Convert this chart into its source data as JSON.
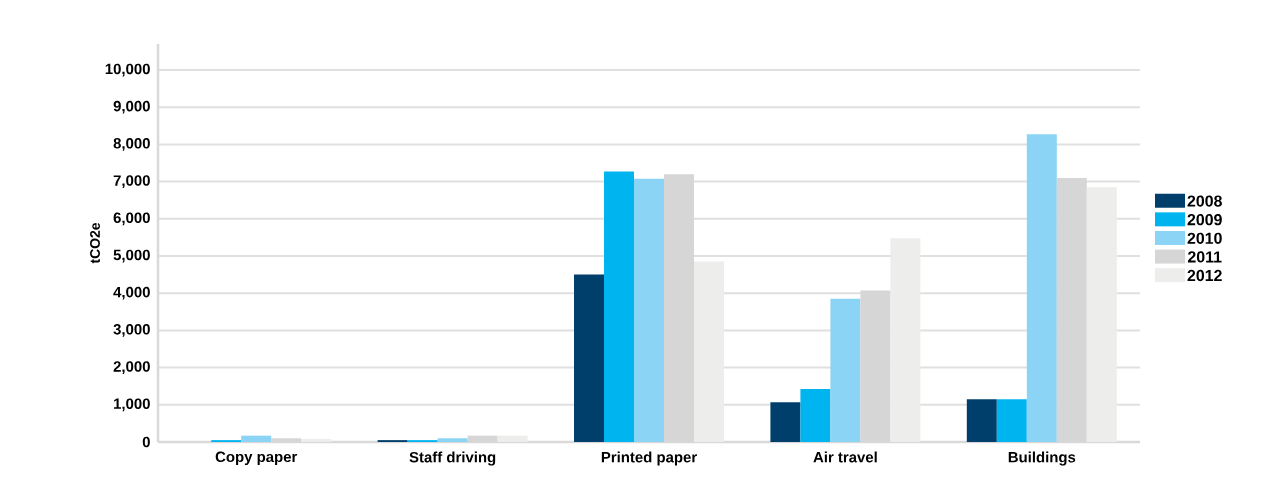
{
  "chart_data": {
    "type": "bar",
    "ylabel": "tCO2e",
    "categories": [
      "Copy paper",
      "Staff driving",
      "Printed paper",
      "Air travel",
      "Buildings"
    ],
    "series": [
      {
        "name": "2008",
        "color": "#003f6b",
        "values": [
          0,
          50,
          4500,
          1070,
          1150
        ]
      },
      {
        "name": "2009",
        "color": "#00b5ef",
        "values": [
          50,
          50,
          7275,
          1425,
          1150
        ]
      },
      {
        "name": "2010",
        "color": "#8bd4f5",
        "values": [
          170,
          100,
          7075,
          3850,
          8275
        ]
      },
      {
        "name": "2011",
        "color": "#d6d6d6",
        "values": [
          100,
          170,
          7200,
          4075,
          7100
        ]
      },
      {
        "name": "2012",
        "color": "#ededeb",
        "values": [
          80,
          170,
          4850,
          5475,
          6850
        ]
      }
    ],
    "ylim": [
      0,
      10700
    ],
    "yticks": [
      0,
      {
        "value": 1000,
        "label": "1,000"
      },
      {
        "value": 2000,
        "label": "2,000"
      },
      {
        "value": 3000,
        "label": "3,000"
      },
      {
        "value": 4000,
        "label": "4,000"
      },
      {
        "value": 5000,
        "label": "5,000"
      },
      {
        "value": 6000,
        "label": "6,000"
      },
      {
        "value": 7000,
        "label": "7,000"
      },
      {
        "value": 8000,
        "label": "8,000"
      },
      {
        "value": 9000,
        "label": "9,000"
      },
      {
        "value": 10000,
        "label": "10,000"
      }
    ],
    "grid": "y",
    "legend": "right"
  }
}
